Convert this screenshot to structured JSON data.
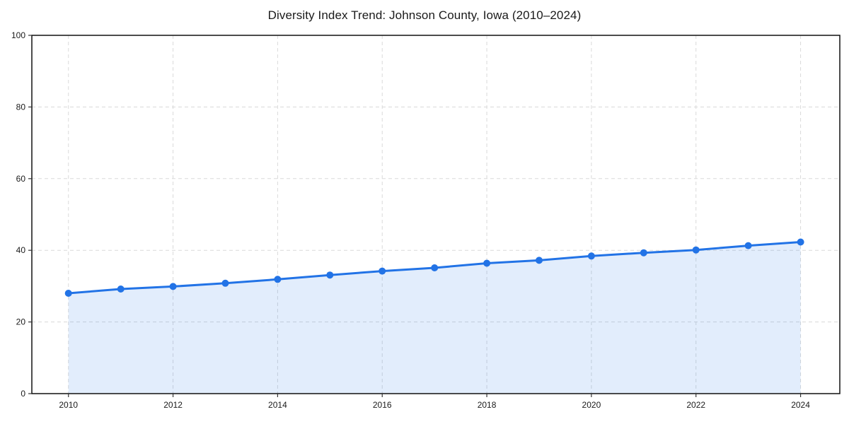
{
  "page": {
    "background": "#ffffff"
  },
  "chart_data": {
    "type": "line",
    "title": "Diversity Index Trend: Johnson County, Iowa (2010–2024)",
    "xlabel": "",
    "ylabel": "",
    "x": [
      2010,
      2011,
      2012,
      2013,
      2014,
      2015,
      2016,
      2017,
      2018,
      2019,
      2020,
      2021,
      2022,
      2023,
      2024
    ],
    "series": [
      {
        "name": "Diversity Index",
        "values": [
          28.0,
          29.2,
          29.9,
          30.8,
          31.9,
          33.1,
          34.2,
          35.1,
          36.4,
          37.2,
          38.4,
          39.3,
          40.1,
          41.3,
          42.3
        ]
      }
    ],
    "xticks": [
      2010,
      2012,
      2014,
      2016,
      2018,
      2020,
      2022,
      2024
    ],
    "yticks": [
      0,
      20,
      40,
      60,
      80,
      100
    ],
    "xlim": [
      2009.3,
      2024.75
    ],
    "ylim": [
      0,
      100
    ],
    "grid": true,
    "grid_style": "dashed",
    "legend": false,
    "area_fill": true,
    "marker": "circle",
    "colors": {
      "line": "#2273e6",
      "marker": "#2273e6",
      "fill": "#2273e6",
      "fill_opacity": 0.13,
      "grid": "#dadada",
      "spine": "#111111",
      "tick": "#333333",
      "text": "#1a1a1a",
      "background": "#ffffff"
    }
  }
}
